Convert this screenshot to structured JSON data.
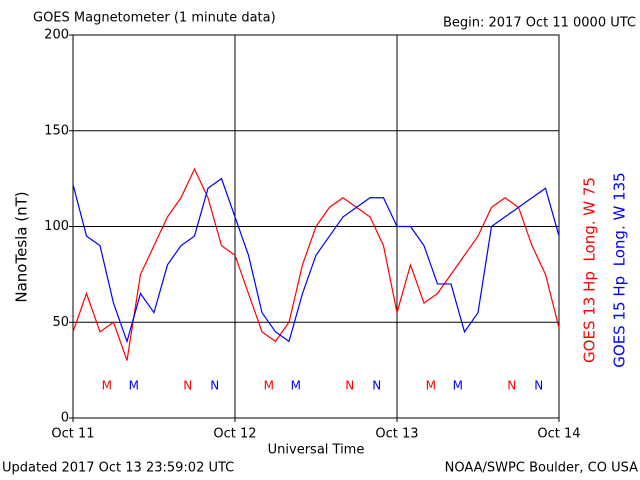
{
  "chart_data": {
    "type": "line",
    "title": "GOES Magnetometer (1 minute data)",
    "subtitle": "Begin:  2017 Oct 11 0000 UTC",
    "xlabel": "Universal Time",
    "ylabel": "NanoTesla (nT)",
    "footer_left": "Updated 2017 Oct 13 23:59:02 UTC",
    "footer_right": "NOAA/SWPC Boulder, CO USA",
    "x": [
      0,
      2,
      4,
      6,
      8,
      10,
      12,
      14,
      16,
      18,
      20,
      22,
      24,
      26,
      28,
      30,
      32,
      34,
      36,
      38,
      40,
      42,
      44,
      46,
      48,
      50,
      52,
      54,
      56,
      58,
      60,
      62,
      64,
      66,
      68,
      70,
      72
    ],
    "xlim": [
      0,
      72
    ],
    "xticks": [
      {
        "value": 0,
        "label": "Oct 11"
      },
      {
        "value": 24,
        "label": "Oct 12"
      },
      {
        "value": 48,
        "label": "Oct 13"
      },
      {
        "value": 72,
        "label": "Oct 14"
      }
    ],
    "ylim": [
      0,
      200
    ],
    "yticks": [
      0,
      50,
      100,
      150,
      200
    ],
    "grid": true,
    "series": [
      {
        "name": "GOES 13 Hp  Long. W 75",
        "color": "#ff0000",
        "values": [
          45,
          65,
          45,
          50,
          30,
          75,
          90,
          105,
          115,
          130,
          115,
          90,
          85,
          65,
          45,
          40,
          50,
          80,
          100,
          110,
          115,
          110,
          105,
          90,
          55,
          80,
          60,
          65,
          75,
          85,
          95,
          110,
          115,
          110,
          90,
          75,
          47
        ]
      },
      {
        "name": "GOES 15 Hp  Long. W 135",
        "color": "#0000ff",
        "values": [
          122,
          95,
          90,
          60,
          40,
          65,
          55,
          80,
          90,
          95,
          120,
          125,
          105,
          85,
          55,
          45,
          40,
          65,
          85,
          95,
          105,
          110,
          115,
          115,
          100,
          100,
          90,
          70,
          70,
          45,
          55,
          100,
          105,
          110,
          115,
          120,
          95
        ]
      }
    ],
    "annotations": [
      {
        "text": "M",
        "x": 5,
        "color": "#ff0000"
      },
      {
        "text": "M",
        "x": 9,
        "color": "#0000ff"
      },
      {
        "text": "N",
        "x": 17,
        "color": "#ff0000"
      },
      {
        "text": "N",
        "x": 21,
        "color": "#0000ff"
      },
      {
        "text": "M",
        "x": 29,
        "color": "#ff0000"
      },
      {
        "text": "M",
        "x": 33,
        "color": "#0000ff"
      },
      {
        "text": "N",
        "x": 41,
        "color": "#ff0000"
      },
      {
        "text": "N",
        "x": 45,
        "color": "#0000ff"
      },
      {
        "text": "M",
        "x": 53,
        "color": "#ff0000"
      },
      {
        "text": "M",
        "x": 57,
        "color": "#0000ff"
      },
      {
        "text": "N",
        "x": 65,
        "color": "#ff0000"
      },
      {
        "text": "N",
        "x": 69,
        "color": "#0000ff"
      }
    ]
  }
}
